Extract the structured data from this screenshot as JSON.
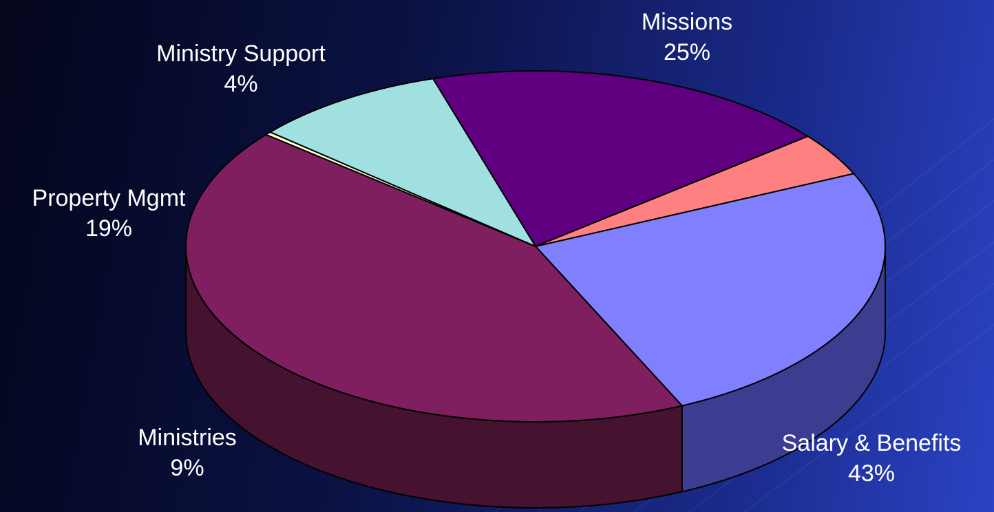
{
  "chart_data": {
    "type": "pie",
    "three_d": true,
    "title": "",
    "slices": [
      {
        "label": "Missions",
        "value": 25,
        "display": "25%",
        "color": "#8080ff",
        "side_color": "#3c3c90"
      },
      {
        "label": "Salary & Benefits",
        "value": 43,
        "display": "43%",
        "color": "#7f1f5f",
        "side_color": "#45122f"
      },
      {
        "label": "",
        "value": 0.3,
        "display": "",
        "color": "#ffffcc",
        "side_color": "#a8a880"
      },
      {
        "label": "Ministries",
        "value": 9,
        "display": "9%",
        "color": "#a0e0e0",
        "side_color": "#507470"
      },
      {
        "label": "Property Mgmt",
        "value": 19,
        "display": "19%",
        "color": "#600080",
        "side_color": "#2e0040"
      },
      {
        "label": "Ministry Support",
        "value": 4,
        "display": "4%",
        "color": "#ff8080",
        "side_color": "#904040"
      }
    ],
    "legend": "none"
  }
}
